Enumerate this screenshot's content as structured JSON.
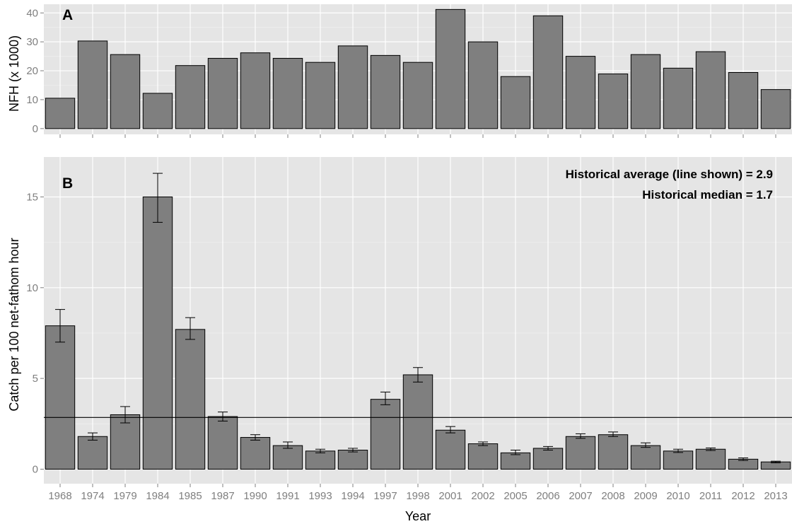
{
  "chart_data": [
    {
      "type": "bar",
      "panel_label": "A",
      "categories": [
        "1968",
        "1974",
        "1979",
        "1984",
        "1985",
        "1987",
        "1990",
        "1991",
        "1993",
        "1994",
        "1997",
        "1998",
        "2001",
        "2002",
        "2005",
        "2006",
        "2007",
        "2008",
        "2009",
        "2010",
        "2011",
        "2012",
        "2013"
      ],
      "values": [
        10.5,
        30.3,
        25.6,
        12.2,
        21.8,
        24.3,
        26.2,
        24.3,
        22.9,
        28.6,
        25.3,
        22.9,
        41.2,
        30.0,
        18.0,
        39.0,
        25.0,
        18.9,
        25.6,
        20.9,
        26.6,
        19.4,
        13.5
      ],
      "xlabel": "",
      "ylabel": "NFH (x 1000)",
      "ylim": [
        -2,
        43
      ],
      "yticks": [
        0,
        10,
        20,
        30,
        40
      ],
      "grid": true
    },
    {
      "type": "bar",
      "panel_label": "B",
      "categories": [
        "1968",
        "1974",
        "1979",
        "1984",
        "1985",
        "1987",
        "1990",
        "1991",
        "1993",
        "1994",
        "1997",
        "1998",
        "2001",
        "2002",
        "2005",
        "2006",
        "2007",
        "2008",
        "2009",
        "2010",
        "2011",
        "2012",
        "2013"
      ],
      "values": [
        7.9,
        1.8,
        3.0,
        15.0,
        7.7,
        2.9,
        1.75,
        1.3,
        1.0,
        1.05,
        3.85,
        5.2,
        2.15,
        1.4,
        0.9,
        1.15,
        1.8,
        1.9,
        1.3,
        1.0,
        1.1,
        0.55,
        0.4
      ],
      "error_low": [
        7.0,
        1.6,
        2.55,
        13.6,
        7.15,
        2.65,
        1.6,
        1.15,
        0.9,
        0.95,
        3.55,
        4.8,
        2.0,
        1.3,
        0.8,
        1.05,
        1.7,
        1.8,
        1.2,
        0.92,
        1.03,
        0.48,
        0.35
      ],
      "error_high": [
        8.8,
        2.0,
        3.45,
        16.3,
        8.35,
        3.15,
        1.9,
        1.5,
        1.1,
        1.15,
        4.25,
        5.6,
        2.35,
        1.5,
        1.05,
        1.25,
        1.95,
        2.05,
        1.45,
        1.1,
        1.17,
        0.62,
        0.44
      ],
      "reference_line": 2.85,
      "annotations": [
        "Historical average (line shown) = 2.9",
        "Historical median = 1.7"
      ],
      "xlabel": "Year",
      "ylabel": "Catch per 100 net-fathom hour",
      "ylim": [
        -0.8,
        17.2
      ],
      "yticks": [
        0,
        5,
        10,
        15
      ],
      "grid": true
    }
  ],
  "colors": {
    "panel_bg": "#e5e5e5",
    "grid_major": "#ffffff",
    "grid_minor": "#f2f2f2",
    "bar_fill": "#7f7f7f",
    "bar_stroke": "#000000"
  }
}
